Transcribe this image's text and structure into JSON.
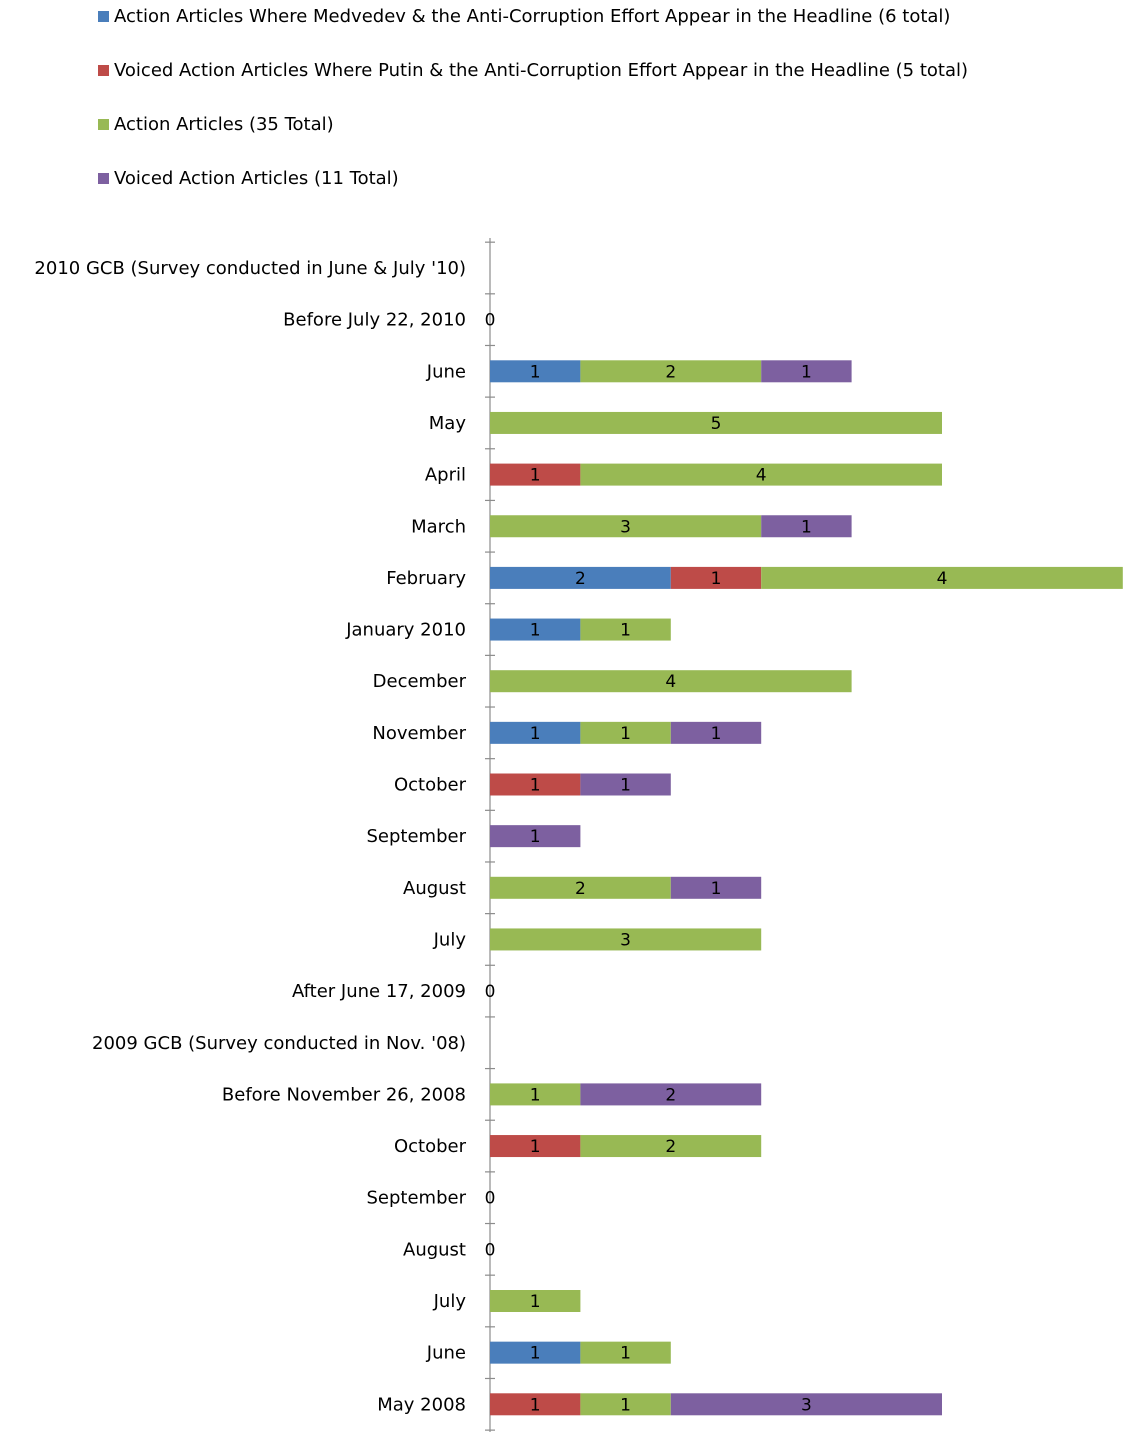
{
  "chart_data": {
    "type": "bar",
    "orientation": "horizontal",
    "stacked": true,
    "categories": [
      "2010 GCB (Survey conducted in June & July '10)",
      "Before July 22, 2010",
      "June",
      "May",
      "April",
      "March",
      "February",
      "January 2010",
      "December",
      "November",
      "October",
      "September",
      "August",
      "July",
      "After June 17, 2009",
      "2009 GCB (Survey conducted in Nov. '08)",
      "Before November 26, 2008",
      "October",
      "September",
      "August",
      "July",
      "June",
      "May 2008"
    ],
    "zero_labels": [
      "",
      "0",
      "",
      "",
      "",
      "",
      "",
      "",
      "",
      "",
      "",
      "",
      "",
      "",
      "0",
      "",
      "",
      "",
      "0",
      "0",
      "",
      "",
      ""
    ],
    "series": [
      {
        "name": "Action Articles Where Medvedev & the Anti-Corruption Effort Appear in the Headline (6 total)",
        "color": "#4a7ebb",
        "values": [
          0,
          0,
          1,
          0,
          0,
          0,
          2,
          1,
          0,
          1,
          0,
          0,
          0,
          0,
          0,
          0,
          0,
          0,
          0,
          0,
          0,
          1,
          0
        ]
      },
      {
        "name": "Voiced Action Articles Where Putin & the Anti-Corruption Effort Appear in the Headline (5 total)",
        "color": "#be4b48",
        "values": [
          0,
          0,
          0,
          0,
          1,
          0,
          1,
          0,
          0,
          0,
          1,
          0,
          0,
          0,
          0,
          0,
          0,
          1,
          0,
          0,
          0,
          0,
          1
        ]
      },
      {
        "name": "Action Articles (35 Total)",
        "color": "#98b954",
        "values": [
          0,
          0,
          2,
          5,
          4,
          3,
          4,
          1,
          4,
          1,
          0,
          0,
          2,
          3,
          0,
          0,
          1,
          2,
          0,
          0,
          1,
          1,
          1
        ]
      },
      {
        "name": "Voiced Action Articles (11 Total)",
        "color": "#7d60a0",
        "values": [
          0,
          0,
          1,
          0,
          0,
          1,
          0,
          0,
          0,
          1,
          1,
          1,
          1,
          0,
          0,
          0,
          2,
          0,
          0,
          0,
          0,
          0,
          3
        ]
      }
    ],
    "xlim": [
      0,
      7
    ],
    "legend_position": "top",
    "grid": false
  }
}
